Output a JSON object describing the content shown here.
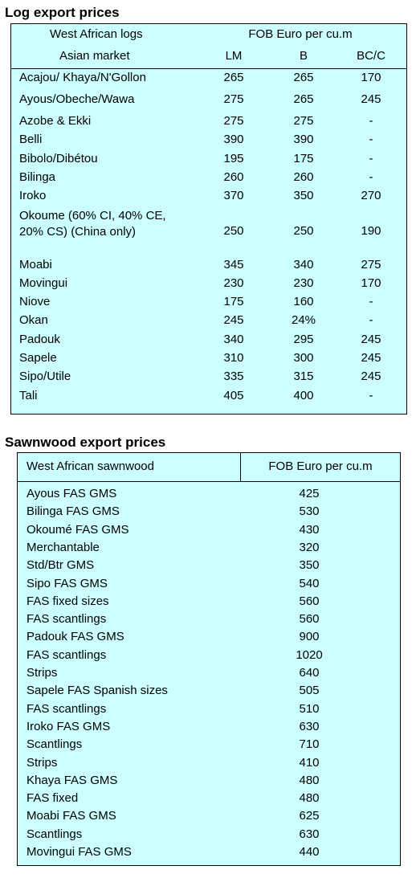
{
  "log_section": {
    "title": "Log export prices",
    "header_col1_line1": "West African logs",
    "header_col1_line2": "Asian market",
    "header_price": "FOB Euro per cu.m",
    "grades": [
      "LM",
      "B",
      "BC/C"
    ],
    "rows": [
      {
        "name": "Acajou/ Khaya/N'Gollon",
        "lm": "265",
        "b": "265",
        "bc": "170"
      },
      {
        "name": "Ayous/Obeche/Wawa",
        "lm": "275",
        "b": "265",
        "bc": "245"
      },
      {
        "name": "Azobe & Ekki",
        "lm": "275",
        "b": "275",
        "bc": "-"
      },
      {
        "name": "Belli",
        "lm": "390",
        "b": "390",
        "bc": "-"
      },
      {
        "name": "Bibolo/Dibétou",
        "lm": "195",
        "b": "175",
        "bc": "-"
      },
      {
        "name": "Bilinga",
        "lm": "260",
        "b": "260",
        "bc": "-"
      },
      {
        "name": "Iroko",
        "lm": "370",
        "b": "350",
        "bc": "270"
      },
      {
        "name": "Okoume (60% CI, 40% CE, 20% CS) (China only)",
        "lm": "250",
        "b": "250",
        "bc": "190"
      },
      {
        "name": "Moabi",
        "lm": "345",
        "b": "340",
        "bc": "275"
      },
      {
        "name": "Movingui",
        "lm": "230",
        "b": "230",
        "bc": "170"
      },
      {
        "name": "Niove",
        "lm": "175",
        "b": "160",
        "bc": "-"
      },
      {
        "name": "Okan",
        "lm": "245",
        "b": "24%",
        "bc": "-"
      },
      {
        "name": "Padouk",
        "lm": "340",
        "b": "295",
        "bc": "245"
      },
      {
        "name": "Sapele",
        "lm": "310",
        "b": "300",
        "bc": "245"
      },
      {
        "name": "Sipo/Utile",
        "lm": "335",
        "b": "315",
        "bc": "245"
      },
      {
        "name": "Tali",
        "lm": "405",
        "b": "400",
        "bc": "-"
      }
    ]
  },
  "sawn_section": {
    "title": "Sawnwood export prices",
    "header_col1": "West African sawnwood",
    "header_price": "FOB Euro per cu.m",
    "rows": [
      {
        "name": "Ayous FAS GMS",
        "price": "425"
      },
      {
        "name": "Bilinga FAS GMS",
        "price": "530"
      },
      {
        "name": "Okoumé FAS GMS",
        "price": "430"
      },
      {
        "name": "Merchantable",
        "price": "320"
      },
      {
        "name": "Std/Btr GMS",
        "price": "350"
      },
      {
        "name": "Sipo FAS GMS",
        "price": "540"
      },
      {
        "name": "FAS fixed sizes",
        "price": "560"
      },
      {
        "name": "FAS scantlings",
        "price": "560"
      },
      {
        "name": "Padouk FAS GMS",
        "price": "900"
      },
      {
        "name": "FAS scantlings",
        "price": "1020"
      },
      {
        "name": "Strips",
        "price": "640"
      },
      {
        "name": "Sapele FAS Spanish sizes",
        "price": "505"
      },
      {
        "name": "FAS scantlings",
        "price": "510"
      },
      {
        "name": "Iroko FAS GMS",
        "price": "630"
      },
      {
        "name": "Scantlings",
        "price": "710"
      },
      {
        "name": "Strips",
        "price": "410"
      },
      {
        "name": "Khaya FAS GMS",
        "price": "480"
      },
      {
        "name": "FAS fixed",
        "price": "480"
      },
      {
        "name": "Moabi FAS GMS",
        "price": "625"
      },
      {
        "name": "Scantlings",
        "price": "630"
      },
      {
        "name": "Movingui FAS GMS",
        "price": "440"
      }
    ]
  }
}
